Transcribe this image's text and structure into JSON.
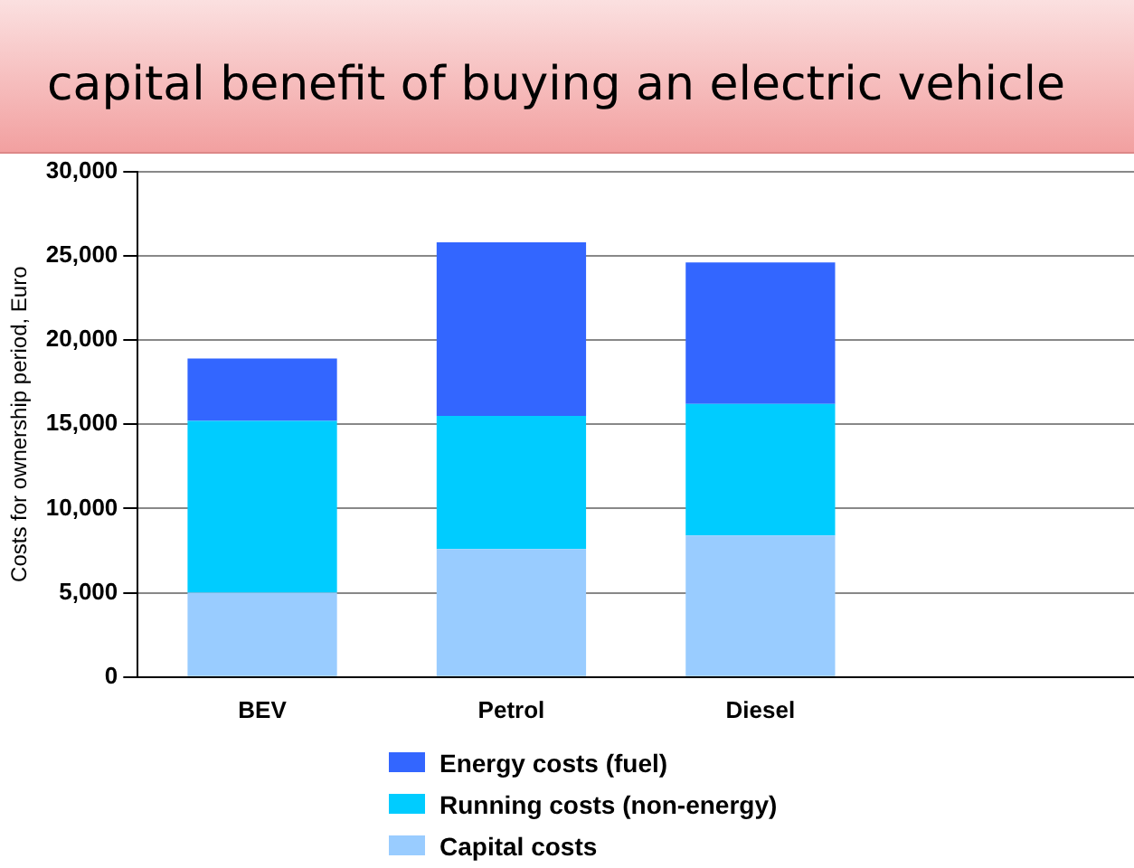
{
  "chart_data": {
    "type": "bar",
    "title": "capital benefit of buying an electric vehicle",
    "ylabel": "Costs for ownership period, Euro",
    "categories": [
      "BEV",
      "Petrol",
      "Diesel",
      null
    ],
    "stacked": true,
    "series": [
      {
        "name": "Capital costs",
        "color": "#99ccff",
        "values": [
          5000,
          7600,
          8400,
          null
        ]
      },
      {
        "name": "Running costs (non-energy)",
        "color": "#00ccff",
        "values": [
          10200,
          7900,
          7800,
          null
        ]
      },
      {
        "name": "Energy costs (fuel)",
        "color": "#3366ff",
        "values": [
          3700,
          10300,
          8400,
          null
        ]
      }
    ],
    "ylim": [
      0,
      30000
    ],
    "yticks": [
      {
        "value": 0,
        "label": "0"
      },
      {
        "value": 5000,
        "label": "5,000"
      },
      {
        "value": 10000,
        "label": "10,000"
      },
      {
        "value": 15000,
        "label": "15,000"
      },
      {
        "value": 20000,
        "label": "20,000"
      },
      {
        "value": 25000,
        "label": "25,000"
      },
      {
        "value": 30000,
        "label": "30,000"
      }
    ],
    "grid": "y",
    "legend": "bottom"
  }
}
